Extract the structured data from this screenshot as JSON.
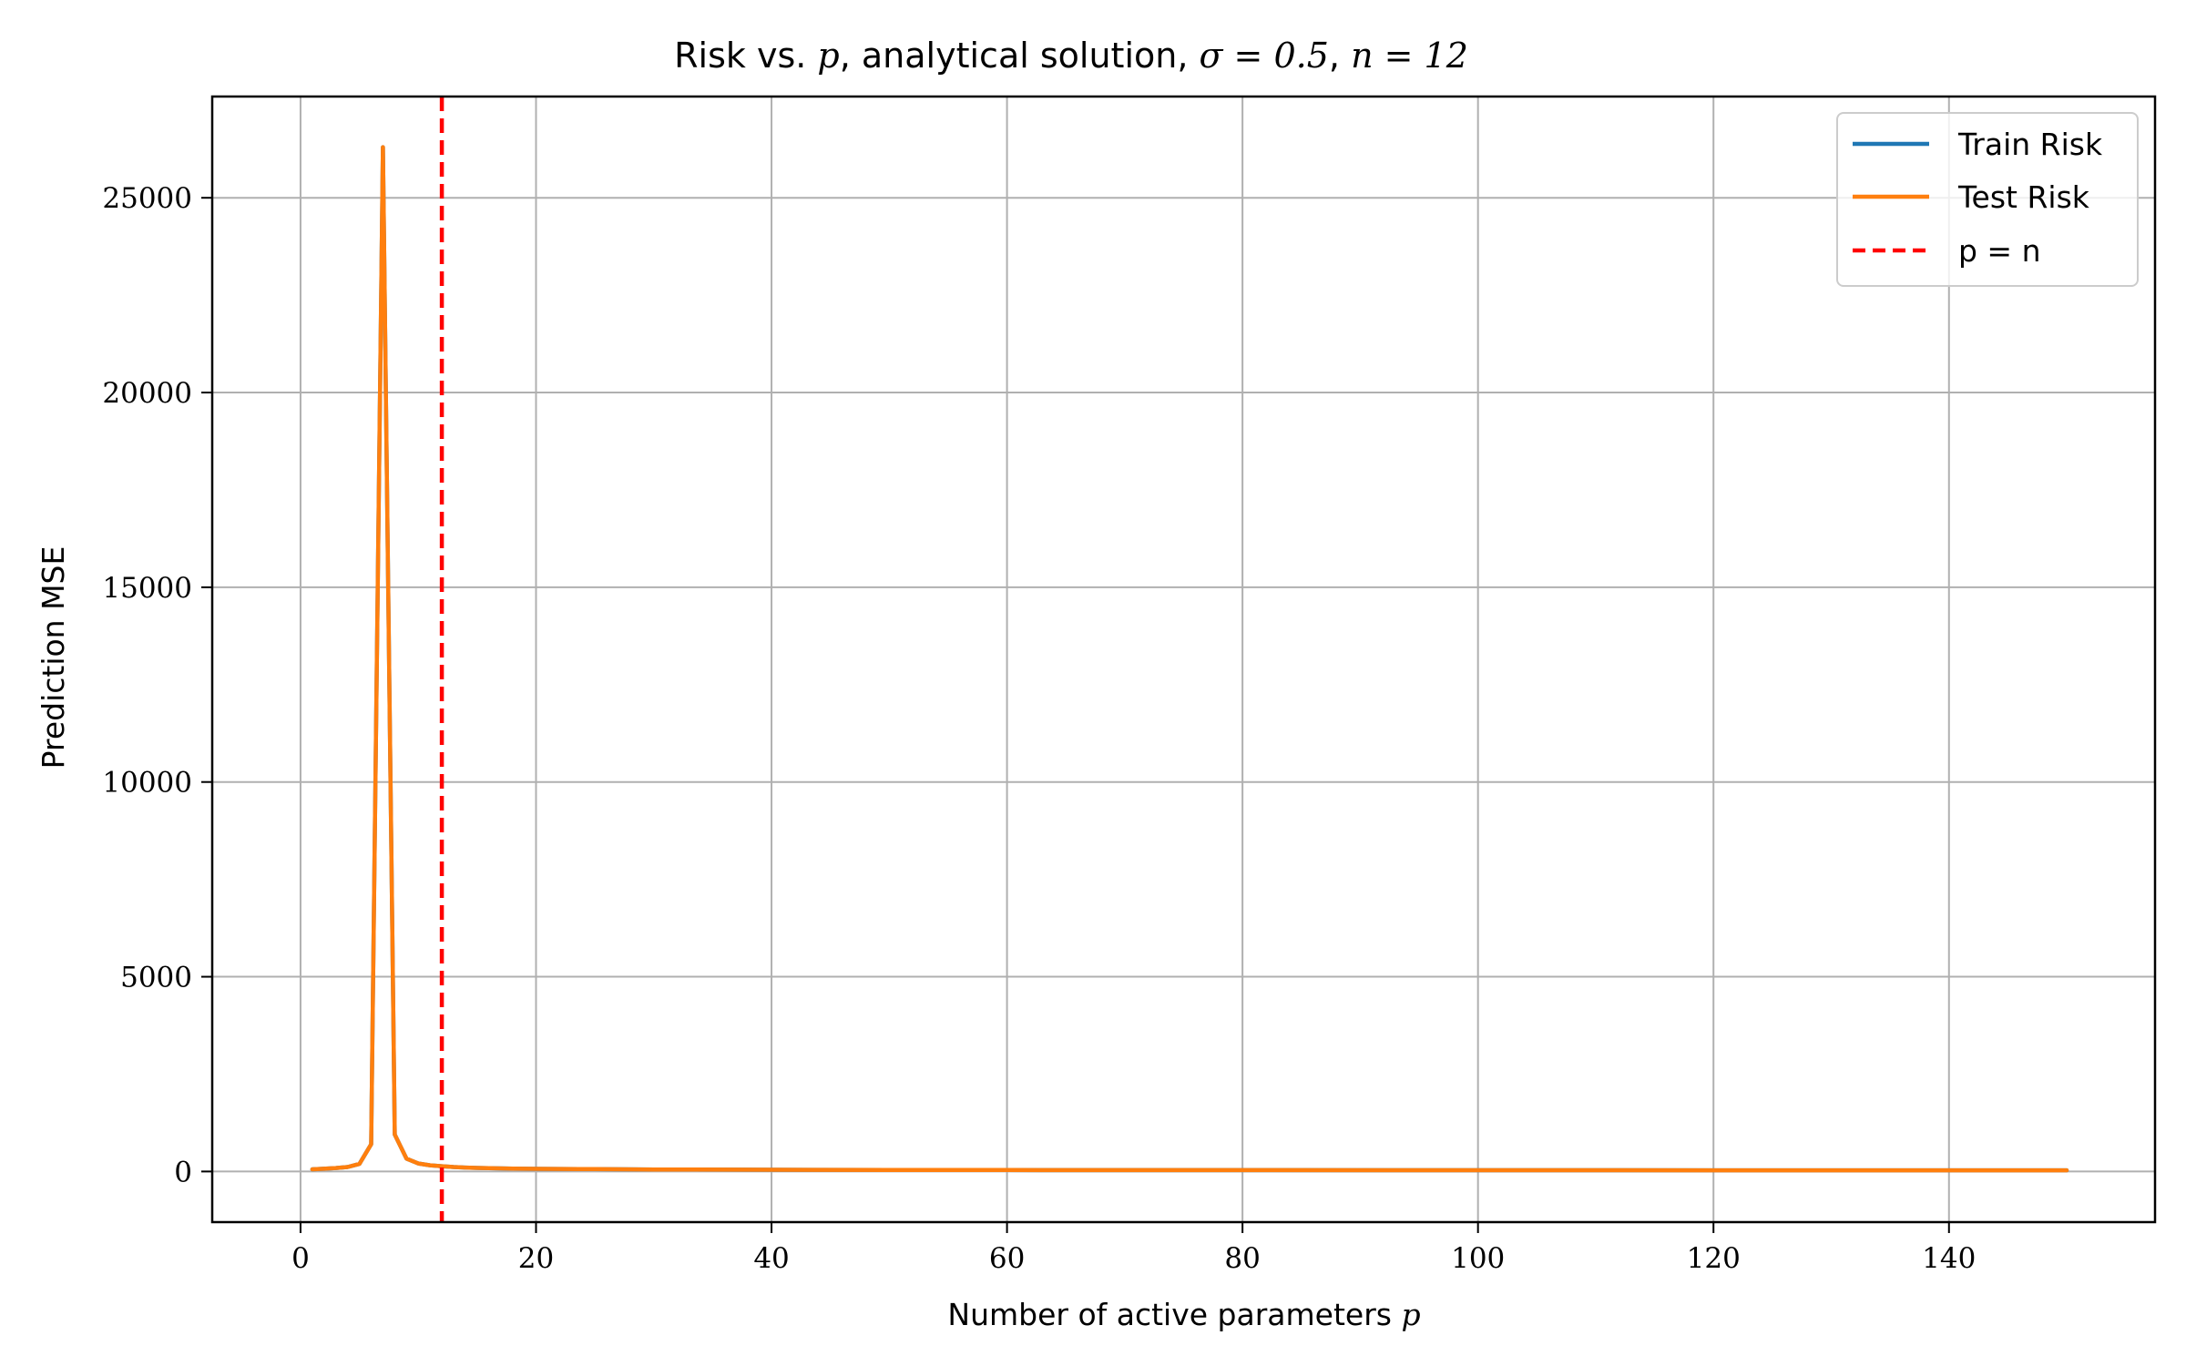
{
  "chart_data": {
    "type": "line",
    "title": "Risk vs. p, analytical solution, σ = 0.5, n = 12",
    "title_parts": {
      "prefix": "Risk vs. ",
      "p": "p",
      "mid": ", analytical solution, ",
      "sigma_expr": "σ = 0.5",
      "sep": ", ",
      "n_expr": "n = 12"
    },
    "xlabel": "Number of active parameters p",
    "xlabel_parts": {
      "text": "Number of active parameters ",
      "var": "p"
    },
    "ylabel": "Prediction MSE",
    "xlim": [
      -7.5,
      157.5
    ],
    "ylim": [
      -1300,
      27600
    ],
    "xticks": [
      0,
      20,
      40,
      60,
      80,
      100,
      120,
      140
    ],
    "yticks": [
      0,
      5000,
      10000,
      15000,
      20000,
      25000
    ],
    "grid": true,
    "legend_position": "top-right",
    "x": [
      1,
      2,
      3,
      4,
      5,
      6,
      7,
      8,
      9,
      10,
      11,
      12,
      13,
      14,
      15,
      16,
      18,
      20,
      25,
      30,
      40,
      50,
      60,
      80,
      100,
      120,
      140,
      150
    ],
    "series": [
      {
        "name": "Train Risk",
        "color": "#1f77b4",
        "values": [
          55,
          70,
          90,
          115,
          195,
          700,
          26300,
          950,
          330,
          205,
          160,
          135,
          115,
          100,
          92,
          85,
          75,
          68,
          60,
          52,
          45,
          40,
          37,
          34,
          32,
          31,
          30,
          30
        ]
      },
      {
        "name": "Test Risk",
        "color": "#ff7f0e",
        "values": [
          55,
          70,
          90,
          115,
          195,
          700,
          26300,
          950,
          330,
          205,
          160,
          135,
          115,
          100,
          92,
          85,
          75,
          68,
          60,
          52,
          45,
          40,
          37,
          34,
          32,
          31,
          30,
          30
        ]
      }
    ],
    "reference_lines": [
      {
        "name": "p = n",
        "axis": "x",
        "value": 12,
        "color": "#ff0000",
        "style": "dashed"
      }
    ]
  }
}
